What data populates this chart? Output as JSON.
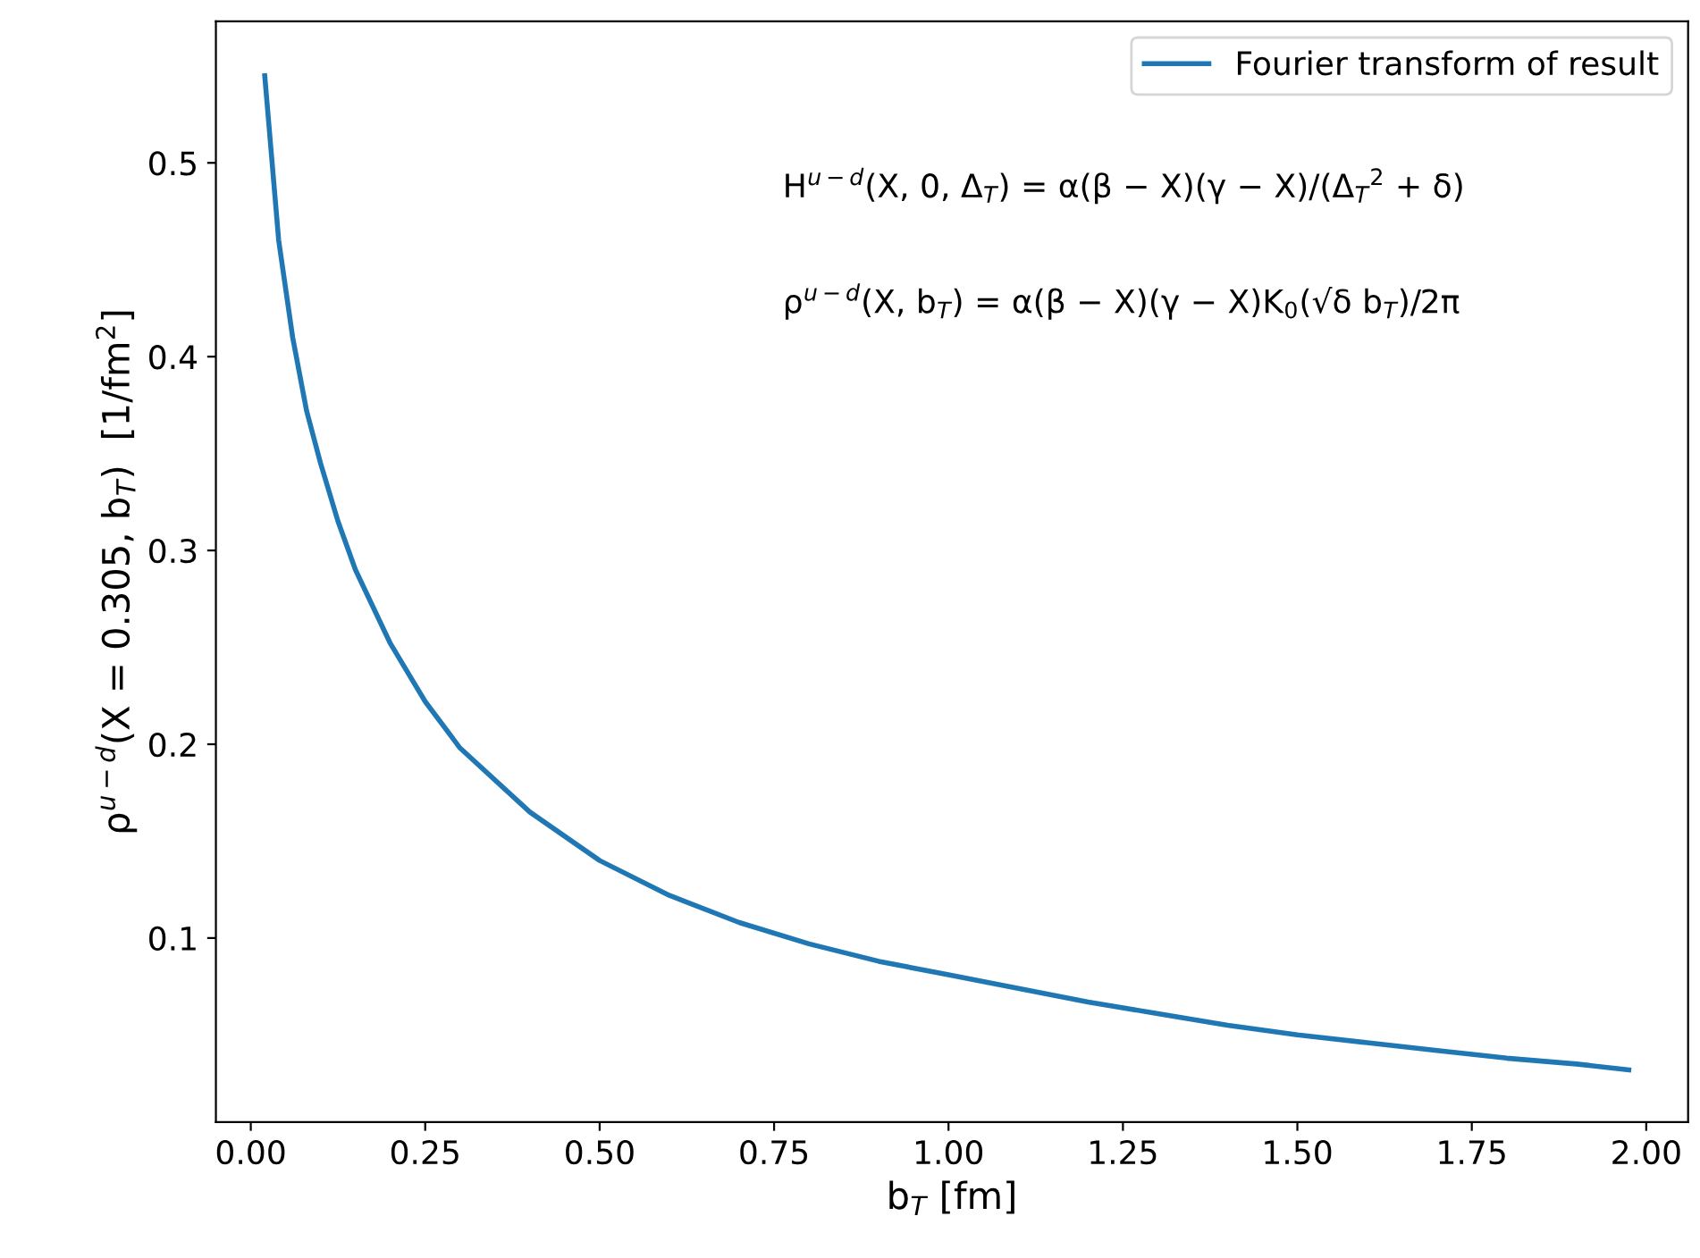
{
  "chart_data": {
    "type": "line",
    "xlabel": "b$_{T}$ [fm]",
    "ylabel": "ρ$^{u−d}$(X = 0.305, b$_{T}$)  [1/fm$^{2}$]",
    "x": [
      0.02,
      0.04,
      0.06,
      0.08,
      0.1,
      0.125,
      0.15,
      0.2,
      0.25,
      0.3,
      0.4,
      0.5,
      0.6,
      0.7,
      0.8,
      0.9,
      1.0,
      1.1,
      1.2,
      1.3,
      1.4,
      1.5,
      1.6,
      1.7,
      1.8,
      1.9,
      1.975
    ],
    "series": [
      {
        "name": "Fourier transform of result",
        "color": "#1f77b4",
        "values": [
          0.545,
          0.46,
          0.41,
          0.372,
          0.345,
          0.315,
          0.29,
          0.252,
          0.222,
          0.198,
          0.165,
          0.14,
          0.122,
          0.108,
          0.097,
          0.088,
          0.081,
          0.074,
          0.067,
          0.061,
          0.055,
          0.05,
          0.046,
          0.042,
          0.038,
          0.035,
          0.032
        ]
      }
    ],
    "annotations": [
      "H$^{u−d}$(X, 0, Δ$_{T}$) = α(β − X)(γ − X)/(Δ$_{T}$$^{2}$ + δ)",
      "ρ$^{u−d}$(X, b$_{T}$) = α(β − X)(γ − X)K$_{0}$(√δ b$_{T}$)/2π"
    ],
    "xlim": [
      -0.05,
      2.06
    ],
    "ylim": [
      0.005,
      0.573
    ],
    "xticks": [
      {
        "value": 0,
        "label": "0.00"
      },
      0.25,
      {
        "value": 0.5,
        "label": "0.50"
      },
      0.75,
      {
        "value": 1,
        "label": "1.00"
      },
      1.25,
      {
        "value": 1.5,
        "label": "1.50"
      },
      1.75,
      {
        "value": 2,
        "label": "2.00"
      }
    ],
    "yticks": [
      0.1,
      0.2,
      0.3,
      0.4,
      0.5
    ],
    "legend": "top right",
    "grid": false
  }
}
